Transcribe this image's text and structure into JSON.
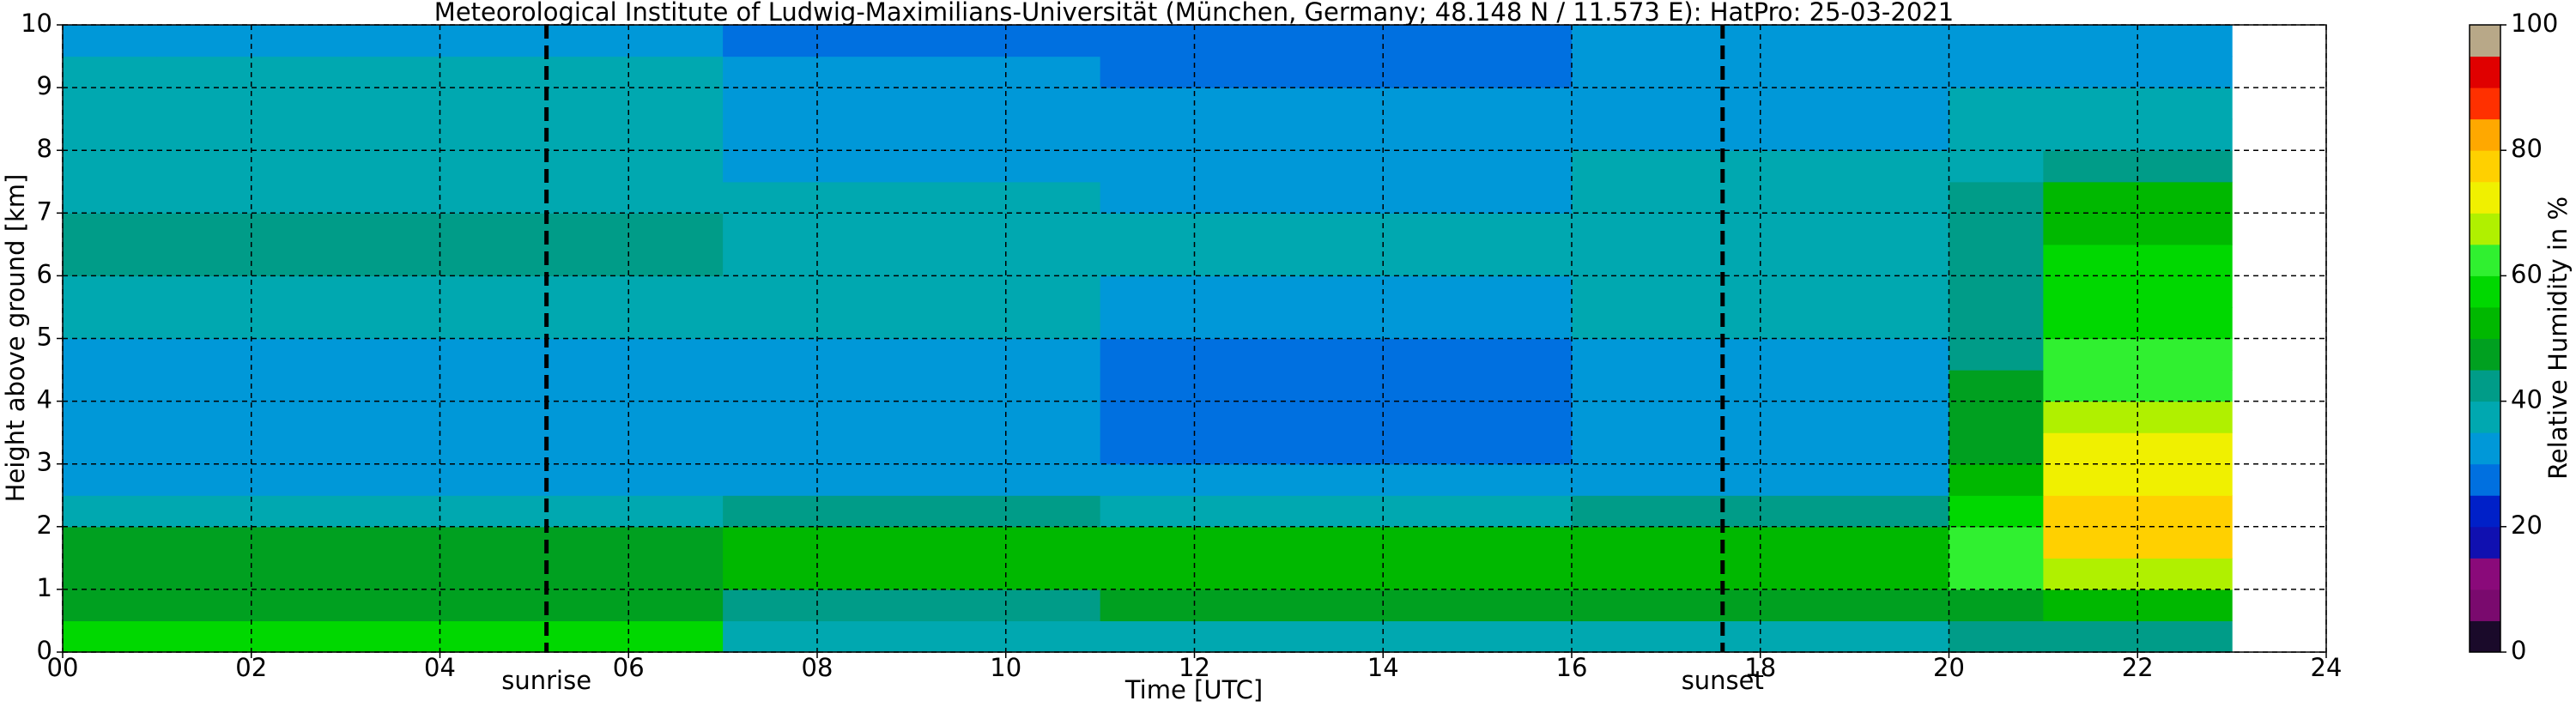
{
  "chart_data": {
    "type": "heatmap",
    "title": "Meteorological Institute of Ludwig-Maximilians-Universität (München, Germany; 48.148 N / 11.573 E):    HatPro: 25-03-2021",
    "x_label": "Time [UTC]",
    "y_label": "Height above ground [km]",
    "xlim": [
      0,
      24
    ],
    "ylim": [
      0,
      10
    ],
    "xticks": [
      {
        "value": 0,
        "label": "00"
      },
      {
        "value": 2,
        "label": "02"
      },
      {
        "value": 4,
        "label": "04"
      },
      {
        "value": 6,
        "label": "06"
      },
      {
        "value": 8,
        "label": "08"
      },
      {
        "value": 10,
        "label": "10"
      },
      {
        "value": 12,
        "label": "12"
      },
      {
        "value": 14,
        "label": "14"
      },
      {
        "value": 16,
        "label": "16"
      },
      {
        "value": 18,
        "label": "18"
      },
      {
        "value": 20,
        "label": "20"
      },
      {
        "value": 22,
        "label": "22"
      },
      {
        "value": 24,
        "label": "24"
      }
    ],
    "yticks": [
      0,
      1,
      2,
      3,
      4,
      5,
      6,
      7,
      8,
      9,
      10
    ],
    "grid": true,
    "xbins": [
      0,
      1,
      2,
      3,
      4,
      5,
      6,
      7,
      8,
      9,
      10,
      11,
      12,
      13,
      14,
      15,
      16,
      17,
      18,
      19,
      20,
      21,
      22,
      23,
      24
    ],
    "ybins": [
      0,
      0.5,
      1,
      1.5,
      2,
      2.5,
      3,
      3.5,
      4,
      4.5,
      5,
      5.5,
      6,
      6.5,
      7,
      7.5,
      8,
      8.5,
      9,
      9.5,
      10
    ],
    "z": [
      [
        55,
        55,
        55,
        55,
        55,
        55,
        55,
        38,
        38,
        38,
        38,
        38,
        38,
        38,
        38,
        38,
        38,
        38,
        38,
        38,
        40,
        42,
        42,
        null
      ],
      [
        46,
        46,
        46,
        46,
        46,
        46,
        46,
        44,
        44,
        44,
        44,
        46,
        46,
        46,
        46,
        46,
        46,
        46,
        46,
        46,
        48,
        52,
        52,
        null
      ],
      [
        48,
        48,
        48,
        48,
        48,
        48,
        48,
        52,
        52,
        52,
        52,
        50,
        50,
        50,
        50,
        50,
        52,
        52,
        52,
        52,
        60,
        66,
        66,
        null
      ],
      [
        47,
        47,
        47,
        47,
        47,
        47,
        47,
        52,
        52,
        52,
        52,
        50,
        50,
        50,
        50,
        50,
        52,
        52,
        52,
        52,
        62,
        78,
        78,
        null
      ],
      [
        38,
        38,
        38,
        38,
        38,
        38,
        38,
        40,
        40,
        40,
        40,
        38,
        38,
        38,
        38,
        38,
        40,
        40,
        40,
        40,
        58,
        78,
        78,
        null
      ],
      [
        30,
        30,
        30,
        30,
        30,
        30,
        30,
        32,
        32,
        32,
        32,
        30,
        30,
        30,
        30,
        30,
        32,
        32,
        32,
        32,
        52,
        72,
        72,
        null
      ],
      [
        30,
        30,
        30,
        30,
        30,
        30,
        30,
        31,
        31,
        31,
        31,
        28,
        28,
        28,
        28,
        28,
        31,
        31,
        31,
        31,
        48,
        70,
        70,
        null
      ],
      [
        32,
        32,
        32,
        32,
        32,
        32,
        32,
        30,
        30,
        30,
        30,
        26,
        26,
        26,
        26,
        26,
        31,
        31,
        31,
        31,
        46,
        68,
        68,
        null
      ],
      [
        33,
        33,
        33,
        33,
        33,
        33,
        33,
        31,
        31,
        31,
        31,
        27,
        27,
        27,
        27,
        27,
        32,
        32,
        32,
        32,
        45,
        64,
        64,
        null
      ],
      [
        34,
        34,
        34,
        34,
        34,
        34,
        34,
        32,
        32,
        32,
        32,
        28,
        28,
        28,
        28,
        28,
        33,
        33,
        33,
        33,
        44,
        62,
        62,
        null
      ],
      [
        38,
        38,
        38,
        38,
        38,
        38,
        38,
        35,
        35,
        35,
        35,
        33,
        33,
        33,
        33,
        33,
        36,
        36,
        36,
        36,
        43,
        58,
        58,
        null
      ],
      [
        39,
        39,
        39,
        39,
        39,
        39,
        39,
        36,
        36,
        36,
        36,
        34,
        34,
        34,
        34,
        34,
        36,
        36,
        36,
        36,
        43,
        56,
        56,
        null
      ],
      [
        41,
        41,
        41,
        41,
        41,
        41,
        41,
        37,
        37,
        37,
        37,
        35,
        35,
        35,
        35,
        35,
        37,
        37,
        37,
        37,
        42,
        55,
        55,
        null
      ],
      [
        40,
        40,
        40,
        40,
        40,
        40,
        40,
        37,
        37,
        37,
        37,
        35,
        35,
        35,
        35,
        35,
        37,
        37,
        37,
        37,
        42,
        54,
        54,
        null
      ],
      [
        39,
        39,
        39,
        39,
        39,
        39,
        39,
        36,
        36,
        36,
        36,
        34,
        34,
        34,
        34,
        34,
        36,
        36,
        36,
        36,
        41,
        50,
        50,
        null
      ],
      [
        38,
        38,
        38,
        38,
        38,
        38,
        38,
        34,
        34,
        34,
        34,
        33,
        33,
        33,
        33,
        33,
        35,
        35,
        35,
        35,
        38,
        42,
        42,
        null
      ],
      [
        37,
        37,
        37,
        37,
        37,
        37,
        37,
        33,
        33,
        33,
        33,
        32,
        32,
        32,
        32,
        32,
        34,
        34,
        34,
        34,
        36,
        38,
        38,
        null
      ],
      [
        36,
        36,
        36,
        36,
        36,
        36,
        36,
        32,
        32,
        32,
        32,
        31,
        31,
        31,
        31,
        31,
        33,
        33,
        33,
        33,
        35,
        36,
        36,
        null
      ],
      [
        35,
        35,
        35,
        35,
        35,
        35,
        35,
        30,
        30,
        30,
        30,
        28,
        28,
        28,
        28,
        28,
        32,
        32,
        32,
        32,
        33,
        34,
        34,
        null
      ],
      [
        33,
        33,
        33,
        33,
        33,
        33,
        33,
        26,
        26,
        26,
        26,
        25,
        25,
        25,
        25,
        25,
        30,
        30,
        30,
        30,
        31,
        32,
        32,
        null
      ]
    ],
    "colorscale": [
      [
        0,
        "#1a0a2a"
      ],
      [
        5,
        "#7a0a6e"
      ],
      [
        10,
        "#8a0a7a"
      ],
      [
        15,
        "#1010b0"
      ],
      [
        20,
        "#0020c8"
      ],
      [
        25,
        "#0070e0"
      ],
      [
        30,
        "#0098d8"
      ],
      [
        35,
        "#00a8b0"
      ],
      [
        40,
        "#009c88"
      ],
      [
        45,
        "#00a020"
      ],
      [
        50,
        "#00b800"
      ],
      [
        55,
        "#00d800"
      ],
      [
        60,
        "#30f030"
      ],
      [
        65,
        "#b0f000"
      ],
      [
        70,
        "#f0f000"
      ],
      [
        75,
        "#ffd000"
      ],
      [
        80,
        "#ffa800"
      ],
      [
        85,
        "#ff3000"
      ],
      [
        90,
        "#e00000"
      ],
      [
        95,
        "#b8a888"
      ]
    ],
    "colorbar": {
      "label": "Relative Humidity in %",
      "zlim": [
        0,
        100
      ],
      "ticks": [
        0,
        20,
        40,
        60,
        80,
        100
      ]
    },
    "annotations": [
      {
        "x": 5.13,
        "label": "sunrise"
      },
      {
        "x": 17.6,
        "label": "sunset"
      }
    ]
  }
}
